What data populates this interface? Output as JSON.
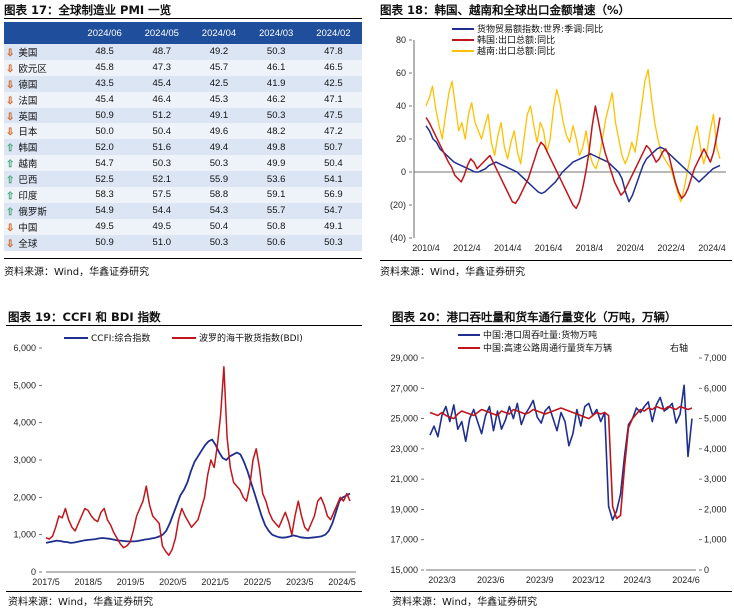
{
  "panels": [
    {
      "title": "图表 17：全球制造业 PMI 一览",
      "source": "资料来源：Wind，华鑫证券研究"
    },
    {
      "title": "图表 18：韩国、越南和全球出口金额增速（%）",
      "source": "资料来源：Wind，华鑫证券研究"
    },
    {
      "title": "图表 19：CCFI 和 BDI 指数",
      "source": "资料来源：Wind，华鑫证券研究"
    },
    {
      "title": "图表 20：港口吞吐量和货车通行量变化（万吨，万辆）",
      "source": "资料来源：Wind，华鑫证券研究"
    }
  ],
  "colors": {
    "header": "#1f4e9c",
    "navy": "#1f2f8f",
    "red": "#c0151a",
    "yellow": "#ffc000",
    "down_arrow": "#d2601a",
    "up_arrow": "#4aa37a"
  },
  "chart_data": [
    {
      "type": "table",
      "columns": [
        "",
        "2024/06",
        "2024/05",
        "2024/04",
        "2024/03",
        "2024/02"
      ],
      "rows": [
        {
          "name": "美国",
          "trend": "down",
          "values": [
            "48.5",
            "48.7",
            "49.2",
            "50.3",
            "47.8"
          ]
        },
        {
          "name": "欧元区",
          "trend": "down",
          "values": [
            "45.8",
            "47.3",
            "45.7",
            "46.1",
            "46.5"
          ]
        },
        {
          "name": "德国",
          "trend": "down",
          "values": [
            "43.5",
            "45.4",
            "42.5",
            "41.9",
            "42.5"
          ]
        },
        {
          "name": "法国",
          "trend": "down",
          "values": [
            "45.4",
            "46.4",
            "45.3",
            "46.2",
            "47.1"
          ]
        },
        {
          "name": "英国",
          "trend": "down",
          "values": [
            "50.9",
            "51.2",
            "49.1",
            "50.3",
            "47.5"
          ]
        },
        {
          "name": "日本",
          "trend": "down",
          "values": [
            "50.0",
            "50.4",
            "49.6",
            "48.2",
            "47.2"
          ]
        },
        {
          "name": "韩国",
          "trend": "up",
          "values": [
            "52.0",
            "51.6",
            "49.4",
            "49.8",
            "50.7"
          ]
        },
        {
          "name": "越南",
          "trend": "up",
          "values": [
            "54.7",
            "50.3",
            "50.3",
            "49.9",
            "50.4"
          ]
        },
        {
          "name": "巴西",
          "trend": "up",
          "values": [
            "52.5",
            "52.1",
            "55.9",
            "53.6",
            "54.1"
          ]
        },
        {
          "name": "印度",
          "trend": "up",
          "values": [
            "58.3",
            "57.5",
            "58.8",
            "59.1",
            "56.9"
          ]
        },
        {
          "name": "俄罗斯",
          "trend": "up",
          "values": [
            "54.9",
            "54.4",
            "54.3",
            "55.7",
            "54.7"
          ]
        },
        {
          "name": "中国",
          "trend": "down",
          "values": [
            "49.5",
            "49.5",
            "50.4",
            "50.8",
            "49.1"
          ]
        },
        {
          "name": "全球",
          "trend": "down",
          "values": [
            "50.9",
            "51.0",
            "50.3",
            "50.6",
            "50.3"
          ]
        }
      ]
    },
    {
      "type": "line",
      "ylim": [
        -40,
        80
      ],
      "yticks": [
        "80",
        "60",
        "40",
        "20",
        "0",
        "(20)",
        "(40)"
      ],
      "xticks": [
        "2010/4",
        "2012/4",
        "2014/4",
        "2016/4",
        "2018/4",
        "2020/4",
        "2022/4",
        "2024/4"
      ],
      "xrange": [
        "2010/4",
        "2024/6"
      ],
      "legend": "top-left",
      "grid": false,
      "series": [
        {
          "name": "货物贸易额指数:世界:季调:同比",
          "color": "#1f2f8f",
          "values": [
            28,
            25,
            20,
            18,
            14,
            12,
            10,
            8,
            6,
            5,
            4,
            3,
            2,
            1,
            0,
            0,
            1,
            2,
            4,
            5,
            6,
            5,
            4,
            3,
            2,
            1,
            0,
            -2,
            -4,
            -6,
            -8,
            -10,
            -12,
            -13,
            -12,
            -10,
            -8,
            -6,
            -3,
            0,
            2,
            4,
            6,
            7,
            8,
            9,
            10,
            11,
            10,
            9,
            8,
            7,
            6,
            4,
            2,
            0,
            -4,
            -12,
            -18,
            -14,
            -8,
            -2,
            4,
            8,
            10,
            12,
            14,
            15,
            14,
            12,
            10,
            8,
            6,
            4,
            2,
            0,
            -2,
            -4,
            -6,
            -4,
            -2,
            0,
            2,
            3,
            4
          ]
        },
        {
          "name": "韩国:出口总额:同比",
          "color": "#c0151a",
          "values": [
            33,
            30,
            26,
            22,
            18,
            14,
            10,
            6,
            3,
            -2,
            -4,
            -6,
            -2,
            4,
            8,
            6,
            2,
            4,
            6,
            8,
            10,
            6,
            2,
            -2,
            -6,
            -10,
            -14,
            -18,
            -19,
            -16,
            -12,
            -8,
            -4,
            2,
            8,
            14,
            18,
            16,
            12,
            8,
            4,
            0,
            -4,
            -8,
            -12,
            -16,
            -20,
            -22,
            -18,
            -10,
            0,
            12,
            28,
            40,
            30,
            20,
            12,
            6,
            0,
            -6,
            -10,
            -14,
            -12,
            -8,
            -4,
            0,
            4,
            8,
            12,
            16,
            14,
            10,
            6,
            8,
            12,
            14,
            10,
            2,
            -6,
            -12,
            -16,
            -14,
            -10,
            -4,
            2,
            6,
            10,
            14,
            10,
            6,
            12,
            22,
            33
          ]
        },
        {
          "name": "越南:出口总额:同比",
          "color": "#ffc000",
          "values": [
            40,
            45,
            52,
            38,
            28,
            20,
            35,
            48,
            55,
            40,
            25,
            30,
            20,
            35,
            42,
            30,
            25,
            20,
            28,
            35,
            18,
            10,
            22,
            30,
            15,
            8,
            18,
            25,
            12,
            5,
            20,
            35,
            40,
            28,
            18,
            30,
            25,
            12,
            20,
            38,
            50,
            42,
            30,
            22,
            18,
            28,
            20,
            10,
            15,
            25,
            12,
            5,
            2,
            8,
            20,
            32,
            40,
            48,
            30,
            20,
            10,
            5,
            10,
            18,
            12,
            25,
            40,
            55,
            62,
            45,
            30,
            20,
            12,
            8,
            5,
            2,
            -5,
            -12,
            -18,
            -10,
            0,
            10,
            20,
            28,
            15,
            5,
            12,
            25,
            35,
            15,
            8
          ]
        }
      ]
    },
    {
      "type": "line",
      "ylim": [
        0,
        6000
      ],
      "yticks": [
        "6,000",
        "5,000",
        "4,000",
        "3,000",
        "2,000",
        "1,000",
        "0"
      ],
      "xticks": [
        "2017/5",
        "2018/5",
        "2019/5",
        "2020/5",
        "2021/5",
        "2022/5",
        "2023/5",
        "2024/5"
      ],
      "xrange": [
        "2017/5",
        "2024/7"
      ],
      "legend": "top-left",
      "grid": false,
      "series": [
        {
          "name": "CCFI:综合指数",
          "color": "#1f2f8f",
          "values": [
            780,
            800,
            820,
            840,
            830,
            810,
            800,
            780,
            790,
            810,
            830,
            850,
            860,
            870,
            880,
            900,
            910,
            900,
            890,
            870,
            850,
            840,
            830,
            820,
            820,
            820,
            830,
            850,
            870,
            880,
            900,
            920,
            950,
            1000,
            1100,
            1300,
            1550,
            1800,
            2050,
            2200,
            2400,
            2700,
            2950,
            3100,
            3250,
            3400,
            3500,
            3550,
            3400,
            3200,
            3050,
            3000,
            3100,
            3150,
            3200,
            3150,
            2950,
            2700,
            2400,
            2100,
            1800,
            1500,
            1250,
            1100,
            1000,
            960,
            930,
            920,
            930,
            950,
            980,
            960,
            930,
            920,
            910,
            920,
            930,
            940,
            960,
            1000,
            1100,
            1300,
            1600,
            1900,
            2000,
            2050,
            2100
          ]
        },
        {
          "name": "波罗的海干散货指数(BDI)",
          "color": "#c0151a",
          "values": [
            920,
            880,
            960,
            1200,
            1500,
            1450,
            1700,
            1400,
            1200,
            1100,
            1300,
            1500,
            1700,
            1650,
            1500,
            1400,
            1350,
            1600,
            1700,
            1400,
            1250,
            1050,
            900,
            750,
            650,
            700,
            800,
            1100,
            1500,
            1700,
            1900,
            2300,
            1800,
            1500,
            1400,
            1300,
            700,
            550,
            450,
            600,
            900,
            1400,
            1700,
            1500,
            1350,
            1200,
            1300,
            1400,
            1700,
            2000,
            2600,
            3000,
            2800,
            3400,
            4200,
            5500,
            3600,
            2800,
            2400,
            2300,
            2200,
            2000,
            1900,
            2300,
            3000,
            3300,
            2800,
            2100,
            1900,
            1600,
            1400,
            1300,
            1200,
            1400,
            1600,
            1350,
            1000,
            1500,
            1900,
            1500,
            1200,
            1100,
            1300,
            1500,
            1900,
            2000,
            1800,
            1500,
            1400,
            1600,
            1800,
            2000,
            1900,
            2100,
            1900
          ]
        }
      ]
    },
    {
      "type": "line",
      "ylim": [
        15000,
        29000
      ],
      "ylim_right": [
        0,
        7000
      ],
      "yticks": [
        "29,000",
        "27,000",
        "25,000",
        "23,000",
        "21,000",
        "19,000",
        "17,000",
        "15,000"
      ],
      "yticks_right": [
        "7,000",
        "6,000",
        "5,000",
        "4,000",
        "3,000",
        "2,000",
        "1,000",
        "0"
      ],
      "xticks": [
        "2023/3",
        "2023/6",
        "2023/9",
        "2023/12",
        "2024/3",
        "2024/6"
      ],
      "xrange": [
        "2023/3",
        "2024/7"
      ],
      "legend": "top-left",
      "axis_note": "右轴",
      "grid": false,
      "series": [
        {
          "name": "中国:港口周吞吐量:货物万吨",
          "axis": "left",
          "color": "#1f2f8f",
          "values": [
            23900,
            24500,
            23800,
            25200,
            25800,
            24800,
            25900,
            24300,
            24800,
            23500,
            25000,
            25600,
            24800,
            24000,
            25200,
            25800,
            24200,
            25500,
            24300,
            24900,
            25800,
            25000,
            26000,
            24600,
            25300,
            25700,
            26200,
            25100,
            24700,
            25500,
            25800,
            25000,
            24200,
            25400,
            24800,
            23200,
            24000,
            25600,
            24500,
            25800,
            26000,
            25200,
            25600,
            24800,
            25400,
            19200,
            18300,
            18900,
            20000,
            22500,
            24600,
            25000,
            25700,
            25400,
            25800,
            26100,
            24800,
            25900,
            26400,
            25500,
            25700,
            26000,
            24700,
            25300,
            27200,
            22500,
            25000
          ]
        },
        {
          "name": "中国:高速公路周通行量货车万辆",
          "axis": "right",
          "color": "#c0151a",
          "values": [
            5200,
            5150,
            5100,
            5200,
            5100,
            5050,
            5000,
            5150,
            5250,
            5200,
            5150,
            5100,
            5200,
            5300,
            5250,
            5200,
            5150,
            5100,
            5250,
            5200,
            5150,
            5300,
            5250,
            5200,
            5150,
            5200,
            5300,
            5250,
            5200,
            5150,
            5200,
            5250,
            5300,
            5350,
            5300,
            5250,
            5200,
            5150,
            5100,
            5050,
            5000,
            5100,
            5200,
            5150,
            5200,
            5100,
            2100,
            1700,
            1800,
            3400,
            4700,
            5000,
            5150,
            5300,
            5250,
            5350,
            5300,
            5400,
            5350,
            5300,
            5400,
            5350,
            5300,
            5400,
            5350,
            5300,
            5350
          ]
        }
      ]
    }
  ]
}
